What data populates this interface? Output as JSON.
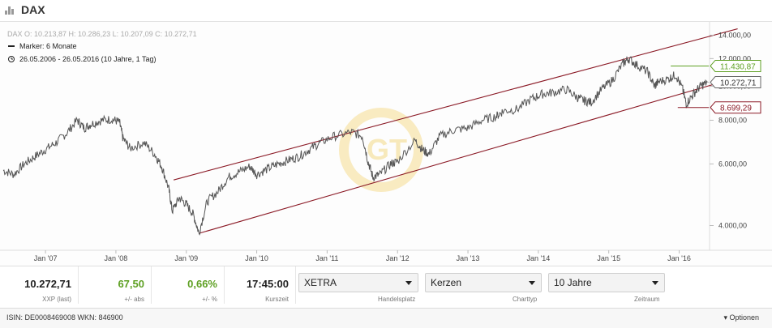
{
  "header": {
    "title": "DAX",
    "icon": "chart-bars-icon"
  },
  "legend": {
    "ohlc": "DAX  O: 10.213,87  H: 10.286,23  L: 10.207,09  C: 10.272,71",
    "marker": "Marker: 6 Monate",
    "range": "26.05.2006 - 26.05.2016 (10 Jahre, 1 Tag)"
  },
  "chart_data": {
    "type": "line",
    "title": "DAX",
    "y_axis_ticks": [
      "4.000,00",
      "6.000,00",
      "8.000,00",
      "10.000,00",
      "12.000,00",
      "14.000,00"
    ],
    "y_axis_values": [
      4000,
      6000,
      8000,
      10000,
      12000,
      14000
    ],
    "x_axis_ticks": [
      "Jan '07",
      "Jan '08",
      "Jan '09",
      "Jan '10",
      "Jan '11",
      "Jan '12",
      "Jan '13",
      "Jan '14",
      "Jan '15",
      "Jan '16"
    ],
    "x_axis_years": [
      2007,
      2008,
      2009,
      2010,
      2011,
      2012,
      2013,
      2014,
      2015,
      2016
    ],
    "xlim": [
      2006.4,
      2016.42
    ],
    "ylim": [
      3400,
      14800
    ],
    "series": [
      {
        "x": [
          2006.4,
          2006.55,
          2006.7,
          2006.85,
          2007.0,
          2007.15,
          2007.3,
          2007.45,
          2007.55,
          2007.65,
          2007.8,
          2007.95,
          2008.05,
          2008.1,
          2008.2,
          2008.4,
          2008.55,
          2008.65,
          2008.75,
          2008.8,
          2008.9,
          2009.0,
          2009.1,
          2009.18,
          2009.3,
          2009.45,
          2009.6,
          2009.75,
          2009.9,
          2010.0,
          2010.15,
          2010.3,
          2010.45,
          2010.6,
          2010.75,
          2010.9,
          2011.1,
          2011.35,
          2011.5,
          2011.58,
          2011.65,
          2011.75,
          2011.9,
          2012.0,
          2012.25,
          2012.35,
          2012.45,
          2012.6,
          2012.8,
          2013.0,
          2013.2,
          2013.4,
          2013.5,
          2013.7,
          2013.9,
          2014.05,
          2014.2,
          2014.4,
          2014.55,
          2014.65,
          2014.75,
          2014.9,
          2015.05,
          2015.2,
          2015.28,
          2015.4,
          2015.55,
          2015.65,
          2015.7,
          2015.85,
          2015.95,
          2016.05,
          2016.1,
          2016.2,
          2016.3,
          2016.4
        ],
        "y": [
          5750,
          5600,
          6000,
          6300,
          6600,
          6900,
          7350,
          8000,
          7600,
          7800,
          8000,
          8050,
          7900,
          7100,
          6650,
          6900,
          6400,
          5900,
          5100,
          4400,
          4800,
          4600,
          4300,
          3800,
          4700,
          5000,
          5500,
          5700,
          5900,
          5600,
          5800,
          6000,
          6150,
          6300,
          6600,
          6900,
          7200,
          7400,
          7200,
          6100,
          5500,
          5600,
          6000,
          6100,
          7000,
          6600,
          6400,
          7200,
          7500,
          7600,
          8000,
          8200,
          8500,
          8600,
          9200,
          9500,
          9600,
          9800,
          9300,
          9100,
          9000,
          9800,
          10400,
          11600,
          12000,
          11500,
          11000,
          10000,
          10300,
          10500,
          10800,
          9800,
          8900,
          9500,
          10000,
          10272.71
        ]
      }
    ],
    "channel": [
      {
        "x": [
          2008.82,
          2016.83
        ],
        "y": [
          5400,
          14600
        ]
      },
      {
        "x": [
          2009.18,
          2016.83
        ],
        "y": [
          3800,
          10600
        ]
      }
    ],
    "markers": [
      {
        "label": "11.430,87",
        "value": 11430.87,
        "color": "#5ea023"
      },
      {
        "label": "10.272,71",
        "value": 10272.71,
        "color": "#666666"
      },
      {
        "label": "8.699,29",
        "value": 8699.29,
        "color": "#8b1a26"
      }
    ],
    "grid": false
  },
  "quote": {
    "last_value": "10.272,71",
    "last_label": "XXP (last)",
    "abs_value": "67,50",
    "abs_label": "+/- abs",
    "pct_value": "0,66%",
    "pct_label": "+/- %",
    "time_value": "17:45:00",
    "time_label": "Kurszeit"
  },
  "controls": {
    "exchange": "XETRA",
    "exchange_label": "Handelsplatz",
    "charttype": "Kerzen",
    "charttype_label": "Charttyp",
    "period": "10 Jahre",
    "period_label": "Zeitraum"
  },
  "footer": {
    "isin": "ISIN: DE0008469008 WKN: 846900",
    "options": "▾ Optionen"
  },
  "colors": {
    "positive": "#5ea023",
    "negative": "#8b1a26",
    "channel": "#8b1a26",
    "price_line": "#555555"
  }
}
